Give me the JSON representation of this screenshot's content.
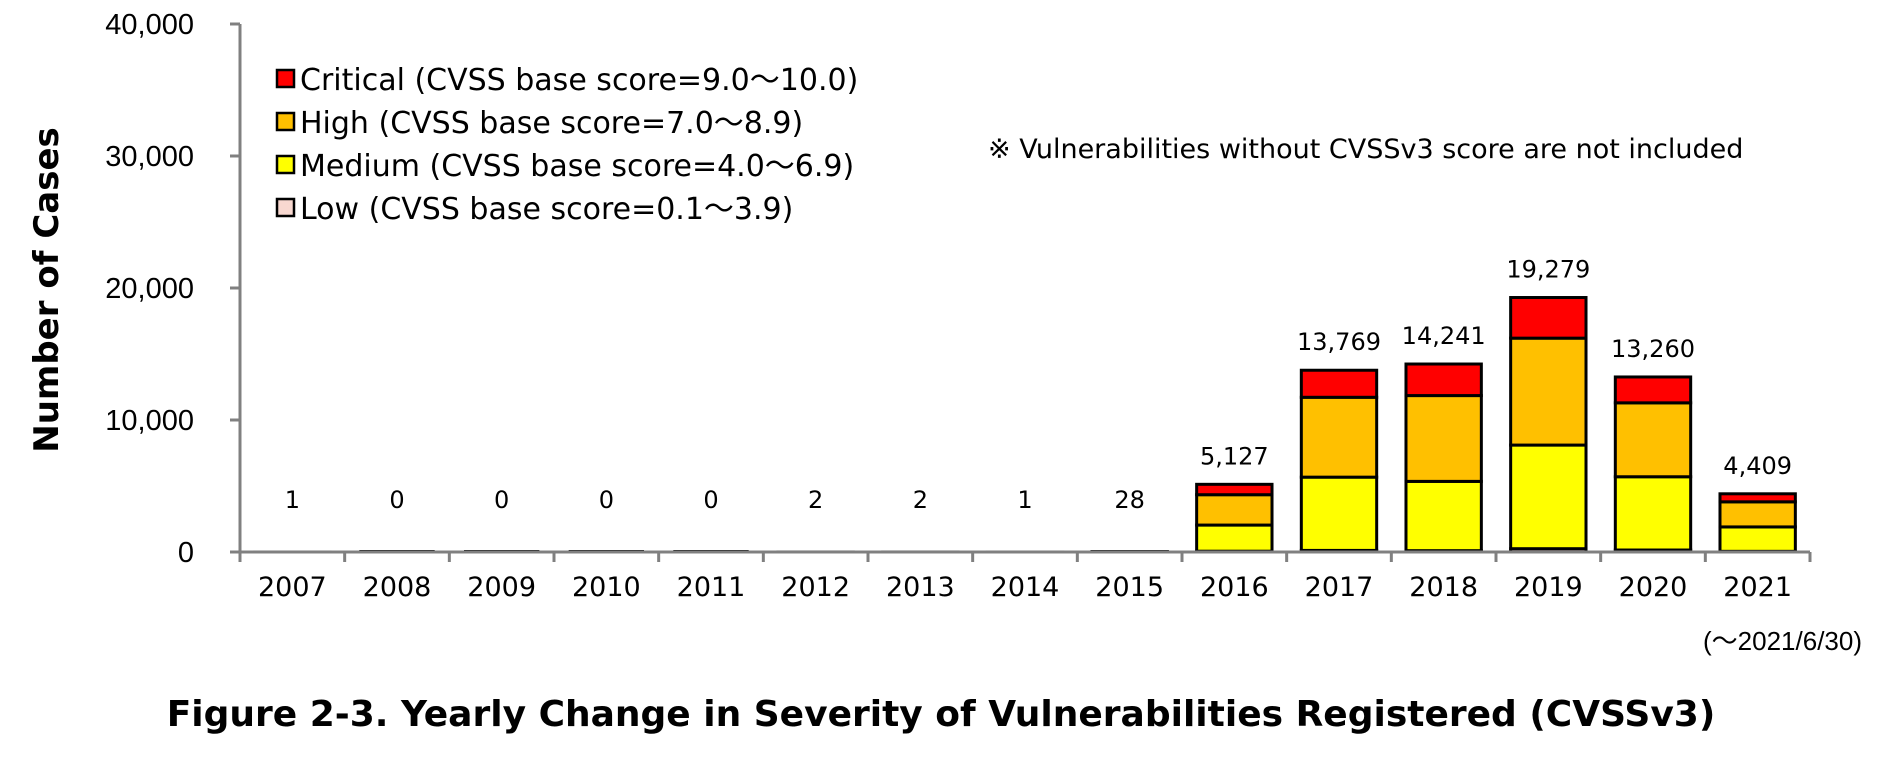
{
  "caption": "Figure 2-3. Yearly Change in Severity of Vulnerabilities Registered (CVSSv3)",
  "chart_data": {
    "type": "bar",
    "stacked": true,
    "title": "",
    "xlabel": "",
    "ylabel": "Number of Cases",
    "ylim": [
      0,
      40000
    ],
    "yticks": [
      0,
      10000,
      20000,
      30000,
      40000
    ],
    "ytick_labels": [
      "0",
      "10,000",
      "20,000",
      "30,000",
      "40,000"
    ],
    "grid": false,
    "legend_position": "top-left",
    "categories": [
      "2007",
      "2008",
      "2009",
      "2010",
      "2011",
      "2012",
      "2013",
      "2014",
      "2015",
      "2016",
      "2017",
      "2018",
      "2019",
      "2020",
      "2021"
    ],
    "totals": [
      1,
      0,
      0,
      0,
      0,
      2,
      2,
      1,
      28,
      5127,
      13769,
      14241,
      19279,
      13260,
      4409
    ],
    "total_labels": [
      "1",
      "0",
      "0",
      "0",
      "0",
      "2",
      "2",
      "1",
      "28",
      "5,127",
      "13,769",
      "14,241",
      "19,279",
      "13,260",
      "4,409"
    ],
    "series": [
      {
        "name": "Low (CVSS base score=0.1～3.9)",
        "color": "#f8d8d0",
        "values": [
          0,
          0,
          0,
          0,
          0,
          0,
          0,
          0,
          0,
          60,
          120,
          100,
          250,
          150,
          50
        ]
      },
      {
        "name": "Medium (CVSS base score=4.0～6.9)",
        "color": "#ffff00",
        "values": [
          1,
          0,
          0,
          0,
          0,
          1,
          1,
          1,
          15,
          1980,
          5550,
          5250,
          7850,
          5550,
          1850
        ]
      },
      {
        "name": "High (CVSS base score=7.0～8.9)",
        "color": "#ffc000",
        "values": [
          0,
          0,
          0,
          0,
          0,
          1,
          1,
          0,
          10,
          2300,
          6050,
          6500,
          8100,
          5600,
          1900
        ]
      },
      {
        "name": "Critical (CVSS base score=9.0～10.0)",
        "color": "#ff0000",
        "values": [
          0,
          0,
          0,
          0,
          0,
          0,
          0,
          0,
          3,
          787,
          2049,
          2391,
          3079,
          1960,
          609
        ]
      }
    ],
    "legend_order": [
      3,
      2,
      1,
      0
    ],
    "note": "※ Vulnerabilities without CVSSv3 score are not included",
    "period_note": "(～2021/6/30)"
  }
}
